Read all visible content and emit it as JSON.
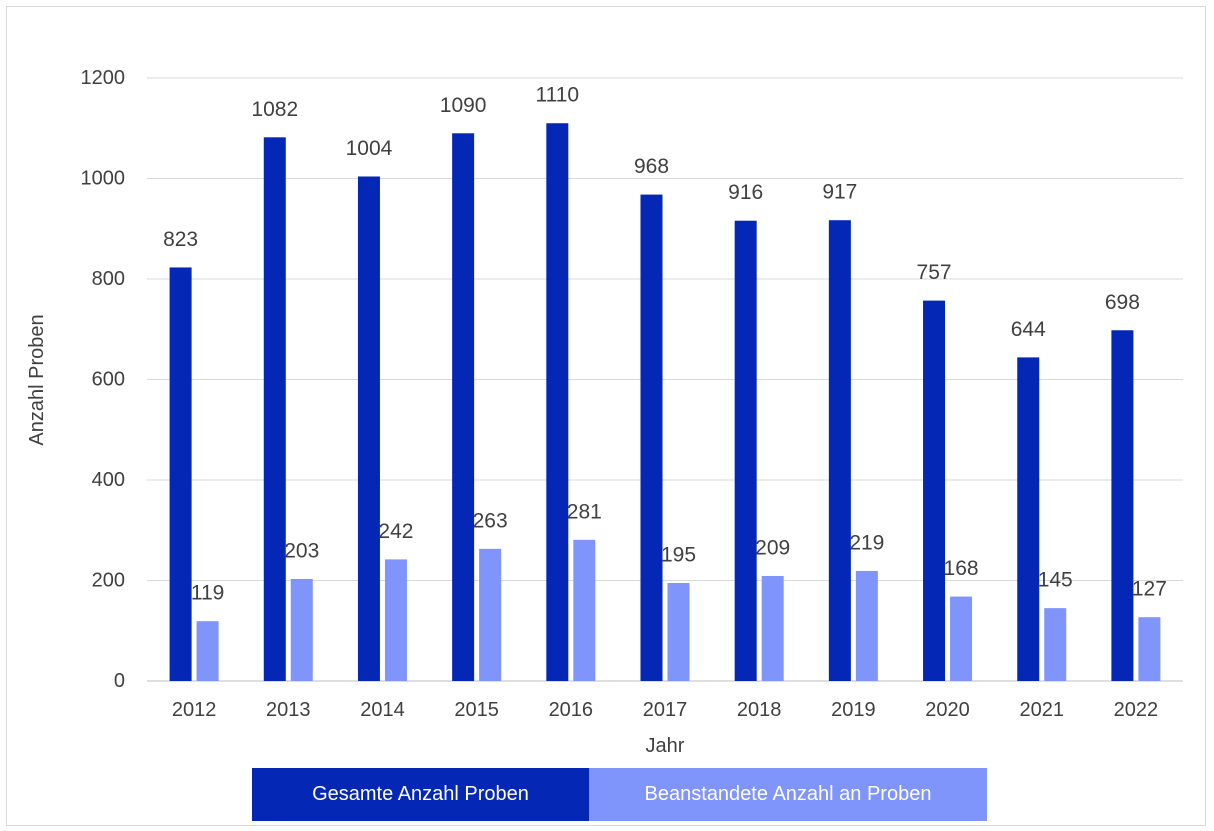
{
  "chart_data": {
    "type": "bar",
    "title": "",
    "xlabel": "Jahr",
    "ylabel": "Anzahl Proben",
    "ylim": [
      0,
      1200
    ],
    "yticks": [
      "0",
      "200",
      "400",
      "600",
      "800",
      "1000",
      "1200"
    ],
    "grid": true,
    "legend_position": "bottom",
    "categories": [
      "2012",
      "2013",
      "2014",
      "2015",
      "2016",
      "2017",
      "2018",
      "2019",
      "2020",
      "2021",
      "2022"
    ],
    "series": [
      {
        "name": "Gesamte Anzahl Proben",
        "color": "#0527b5",
        "values": [
          823,
          1082,
          1004,
          1090,
          1110,
          968,
          916,
          917,
          757,
          644,
          698
        ]
      },
      {
        "name": "Beanstandete Anzahl an Proben",
        "color": "#7f95fb",
        "values": [
          119,
          203,
          242,
          263,
          281,
          195,
          209,
          219,
          168,
          145,
          127
        ]
      }
    ]
  }
}
